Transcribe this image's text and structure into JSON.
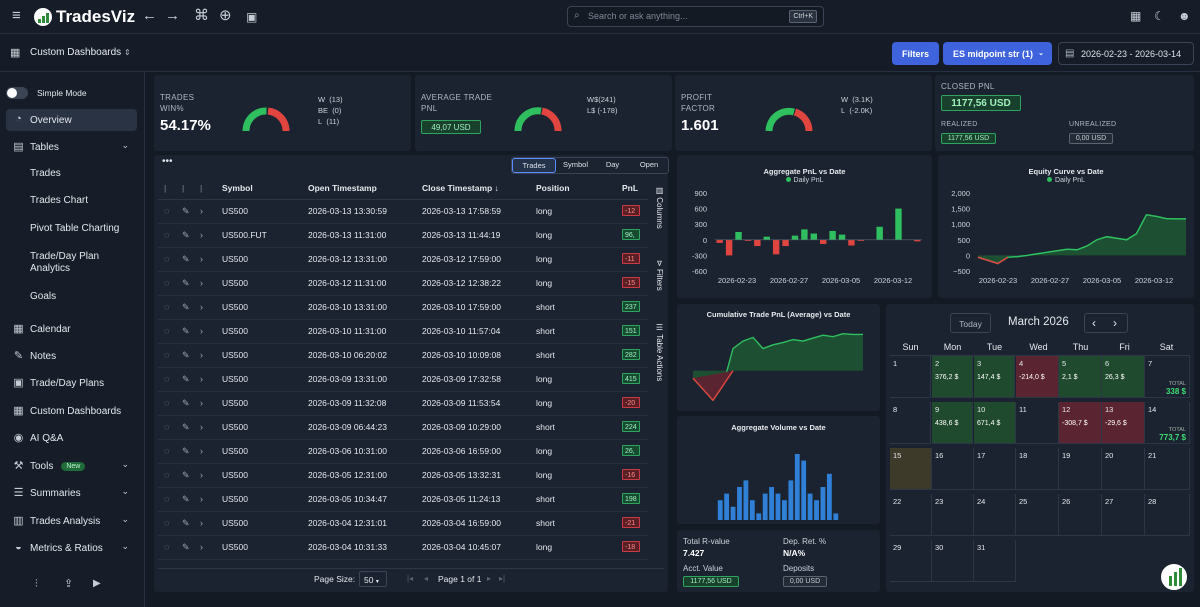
{
  "app": {
    "name": "TradesViz"
  },
  "search": {
    "placeholder": "Search or ask anything...",
    "shortcut": "Ctrl+K"
  },
  "subbar": {
    "section": "Custom Dashboards",
    "filters": "Filters",
    "filter_select": "ES midpoint str (1)",
    "date_range": "2026-02-23 - 2026-03-14"
  },
  "sidebar": {
    "simple_mode": "Simple Mode",
    "items": {
      "overview": "Overview",
      "tables": "Tables",
      "trades": "Trades",
      "trades_chart": "Trades Chart",
      "pivot": "Pivot Table Charting",
      "plan_analytics": "Trade/Day Plan Analytics",
      "goals": "Goals",
      "calendar": "Calendar",
      "notes": "Notes",
      "plans": "Trade/Day Plans",
      "custom": "Custom Dashboards",
      "aiqa": "AI Q&A",
      "tools": "Tools",
      "tools_badge": "New",
      "summaries": "Summaries",
      "trades_analysis": "Trades Analysis",
      "metrics": "Metrics & Ratios"
    }
  },
  "kpi": {
    "trades": {
      "label1": "TRADES",
      "label2": "WIN%",
      "value": "54.17%",
      "w": "W",
      "w_v": "(13)",
      "be": "BE",
      "be_v": "(0)",
      "l": "L",
      "l_v": "(11)",
      "win_frac": 0.5417
    },
    "avg": {
      "label1": "AVERAGE TRADE",
      "label2": "PNL",
      "value": "49,07 USD",
      "w": "W$",
      "w_v": "(241)",
      "l": "L$",
      "l_v": "(-178)"
    },
    "pf": {
      "label1": "PROFIT",
      "label2": "FACTOR",
      "value": "1.601",
      "w": "W",
      "w_v": "(3.1K)",
      "l": "L",
      "l_v": "(-2.0K)"
    },
    "closed": {
      "label": "CLOSED PNL",
      "value": "1177,56 USD",
      "realized": "REALIZED",
      "realized_v": "1177,56 USD",
      "unrealized": "UNREALIZED",
      "unrealized_v": "0,00 USD"
    }
  },
  "table": {
    "tabs": [
      "Trades",
      "Symbol",
      "Day",
      "Open"
    ],
    "columns": [
      "Symbol",
      "Open Timestamp",
      "Close Timestamp",
      "Position",
      "PnL"
    ],
    "rows": [
      [
        "US500",
        "2026-03-13 13:30:59",
        "2026-03-13 17:58:59",
        "long",
        "-12",
        "neg"
      ],
      [
        "US500.FUT",
        "2026-03-13 11:31:00",
        "2026-03-13 11:44:19",
        "long",
        "96,",
        "pos"
      ],
      [
        "US500",
        "2026-03-12 13:31:00",
        "2026-03-12 17:59:00",
        "long",
        "-11",
        "neg"
      ],
      [
        "US500",
        "2026-03-12 11:31:00",
        "2026-03-12 12:38:22",
        "long",
        "-15",
        "neg"
      ],
      [
        "US500",
        "2026-03-10 13:31:00",
        "2026-03-10 17:59:00",
        "short",
        "237",
        "pos"
      ],
      [
        "US500",
        "2026-03-10 11:31:00",
        "2026-03-10 11:57:04",
        "short",
        "151",
        "pos"
      ],
      [
        "US500",
        "2026-03-10 06:20:02",
        "2026-03-10 10:09:08",
        "short",
        "282",
        "pos"
      ],
      [
        "US500",
        "2026-03-09 13:31:00",
        "2026-03-09 17:32:58",
        "long",
        "415",
        "pos"
      ],
      [
        "US500",
        "2026-03-09 11:32:08",
        "2026-03-09 11:53:54",
        "long",
        "-20",
        "neg"
      ],
      [
        "US500",
        "2026-03-09 06:44:23",
        "2026-03-09 10:29:00",
        "short",
        "224",
        "pos"
      ],
      [
        "US500",
        "2026-03-06 10:31:00",
        "2026-03-06 16:59:00",
        "long",
        "26,",
        "pos"
      ],
      [
        "US500",
        "2026-03-05 12:31:00",
        "2026-03-05 13:32:31",
        "long",
        "-16",
        "neg"
      ],
      [
        "US500",
        "2026-03-05 10:34:47",
        "2026-03-05 11:24:13",
        "short",
        "198",
        "pos"
      ],
      [
        "US500",
        "2026-03-04 12:31:01",
        "2026-03-04 16:59:00",
        "short",
        "-21",
        "neg"
      ],
      [
        "US500",
        "2026-03-04 10:31:33",
        "2026-03-04 10:45:07",
        "long",
        "-18",
        "neg"
      ]
    ],
    "side_tabs": {
      "columns": "Columns",
      "filters": "Filters",
      "actions": "Table Actions"
    },
    "pager": {
      "page_size_label": "Page Size:",
      "page_size": "50",
      "page_info": "Page 1 of 1"
    }
  },
  "charts": {
    "agg_pnl": {
      "title": "Aggregate PnL vs Date",
      "legend": "Daily PnL",
      "yticks": [
        "900",
        "600",
        "300",
        "0",
        "-300",
        "-600"
      ],
      "xticks": [
        "2026-02-23",
        "2026-02-27",
        "2026-03-05",
        "2026-03-12"
      ]
    },
    "equity": {
      "title": "Equity Curve vs Date",
      "legend": "Daily PnL",
      "yticks": [
        "2,000",
        "1,500",
        "1,000",
        "500",
        "0",
        "−500"
      ],
      "xticks": [
        "2026-02-23",
        "2026-02-27",
        "2026-03-05",
        "2026-03-12"
      ]
    },
    "cum": {
      "title": "Cumulative Trade PnL (Average) vs Date"
    },
    "volume": {
      "title": "Aggregate Volume vs Date"
    }
  },
  "chart_data": [
    {
      "type": "bar",
      "title": "Aggregate PnL vs Date",
      "series": [
        {
          "name": "Daily PnL",
          "values": [
            -60,
            -300,
            150,
            -20,
            -120,
            60,
            -280,
            -120,
            80,
            200,
            120,
            -80,
            170,
            100,
            -110,
            -20,
            0,
            250,
            0,
            600,
            0,
            -30
          ]
        }
      ],
      "ylim": [
        -600,
        900
      ]
    },
    {
      "type": "area",
      "title": "Equity Curve vs Date",
      "series": [
        {
          "name": "Daily PnL",
          "values": [
            -60,
            -160,
            -260,
            -60,
            -40,
            0,
            50,
            100,
            150,
            200,
            180,
            300,
            500,
            600,
            550,
            500,
            700,
            1300,
            1250,
            1180,
            1170,
            1177
          ]
        }
      ],
      "ylim": [
        -500,
        2000
      ]
    },
    {
      "type": "area",
      "title": "Cumulative Trade PnL (Average) vs Date",
      "values": [
        -10,
        -25,
        -40,
        -20,
        30,
        40,
        45,
        30,
        35,
        38,
        42,
        40,
        44,
        48,
        46,
        50,
        49,
        49
      ]
    },
    {
      "type": "bar",
      "title": "Aggregate Volume vs Date",
      "values": [
        3,
        4,
        2,
        5,
        6,
        3,
        1,
        4,
        5,
        4,
        3,
        6,
        10,
        9,
        4,
        3,
        5,
        7,
        1
      ]
    }
  ],
  "calendar": {
    "today": "Today",
    "month": "March 2026",
    "weekdays": [
      "Sun",
      "Mon",
      "Tue",
      "Wed",
      "Thu",
      "Fri",
      "Sat"
    ],
    "week1": {
      "d1": "1",
      "d2": "2",
      "p2": "376,2 $",
      "d3": "3",
      "p3": "147,4 $",
      "d4": "4",
      "p4": "-214,0 $",
      "d5": "5",
      "p5": "2,1 $",
      "d6": "6",
      "p6": "26,3 $",
      "d7": "7",
      "tl": "TOTAL",
      "tv": "338 $"
    },
    "week2": {
      "d8": "8",
      "d9": "9",
      "p9": "438,6 $",
      "d10": "10",
      "p10": "671,4 $",
      "d11": "11",
      "d12": "12",
      "p12": "-308,7 $",
      "d13": "13",
      "p13": "-29,6 $",
      "d14": "14",
      "tl": "TOTAL",
      "tv": "773,7 $"
    },
    "rest": [
      "15",
      "16",
      "17",
      "18",
      "19",
      "20",
      "21",
      "22",
      "23",
      "24",
      "25",
      "26",
      "27",
      "28",
      "29",
      "30",
      "31"
    ]
  },
  "stats": {
    "r_label": "Total R-value",
    "r_value": "7.427",
    "dep_label": "Dep. Ret. %",
    "dep_value": "N/A%",
    "acct_label": "Acct. Value",
    "acct_value": "1177,56 USD",
    "deposits_label": "Deposits",
    "deposits_value": "0,00 USD"
  }
}
